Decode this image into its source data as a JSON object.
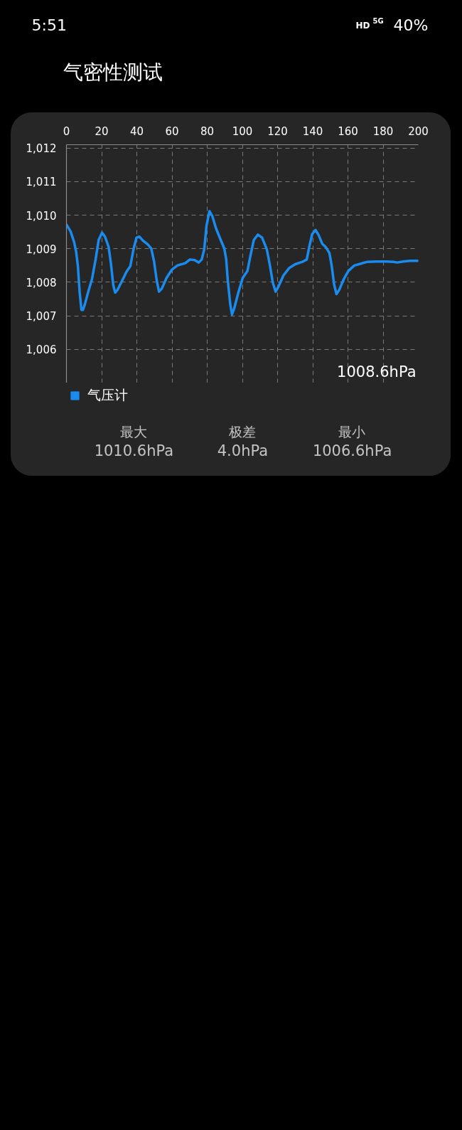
{
  "chart_data": {
    "type": "line",
    "title": "气密性测试",
    "annotations": [
      "5:51",
      "HD",
      "5G",
      "40%",
      "1008.6hPa",
      "最大",
      "1010.6hPa",
      "极差",
      "4.0hPa",
      "最小",
      "1006.6hPa"
    ],
    "xlim": [
      0,
      200
    ],
    "xticks": [
      0,
      20,
      40,
      60,
      80,
      100,
      120,
      140,
      160,
      180,
      200
    ],
    "ylim": [
      1005,
      1012.1
    ],
    "yticks": [
      {
        "value": 1006,
        "label": "1,006"
      },
      {
        "value": 1007,
        "label": "1,007"
      },
      {
        "value": 1008,
        "label": "1,008"
      },
      {
        "value": 1009,
        "label": "1,009"
      },
      {
        "value": 1010,
        "label": "1,010"
      },
      {
        "value": 1011,
        "label": "1,011"
      },
      {
        "value": 1012,
        "label": "1,012"
      }
    ],
    "grid": true,
    "legend": "bottom left",
    "series": [
      {
        "name": "气压计",
        "color": "#1a8cf0",
        "x": [
          0,
          2.4,
          4.4,
          5.5,
          6.5,
          7.5,
          8.5,
          9.4,
          10.5,
          12.5,
          14.5,
          16.6,
          18.3,
          20.2,
          21.9,
          24.0,
          25.3,
          26.6,
          27.7,
          29.1,
          31.4,
          34.1,
          36.3,
          38.1,
          39.8,
          41.5,
          43.5,
          46.2,
          48.2,
          49.8,
          51.3,
          52.6,
          54.2,
          56.9,
          60.0,
          63.0,
          67.5,
          70.2,
          72.9,
          75.2,
          76.9,
          78.3,
          79.6,
          81.3,
          83.0,
          85.0,
          87.7,
          89.7,
          90.8,
          91.7,
          93.1,
          94.1,
          95.3,
          97.8,
          100.2,
          102.9,
          104.5,
          106.5,
          108.8,
          111.2,
          113.9,
          115.5,
          117.3,
          118.9,
          120.6,
          123.3,
          126.7,
          130.1,
          134.1,
          136.6,
          138.0,
          139.7,
          141.6,
          143.4,
          145.4,
          147.4,
          149.5,
          150.8,
          152.2,
          153.5,
          155.1,
          157.6,
          160.3,
          163.6,
          167.0,
          171.1,
          176.5,
          181.9,
          185.9,
          188.0,
          191.4,
          195.4,
          200
        ],
        "values": [
          1009.72,
          1009.51,
          1009.19,
          1008.91,
          1008.48,
          1007.71,
          1007.18,
          1007.18,
          1007.35,
          1007.74,
          1008.09,
          1008.69,
          1009.26,
          1009.48,
          1009.36,
          1009.05,
          1008.55,
          1007.92,
          1007.69,
          1007.78,
          1008.02,
          1008.31,
          1008.48,
          1008.98,
          1009.33,
          1009.36,
          1009.24,
          1009.13,
          1009.01,
          1008.62,
          1008.06,
          1007.72,
          1007.81,
          1008.13,
          1008.38,
          1008.5,
          1008.57,
          1008.68,
          1008.66,
          1008.59,
          1008.68,
          1008.98,
          1009.68,
          1010.12,
          1009.96,
          1009.61,
          1009.26,
          1009.01,
          1008.69,
          1008.06,
          1007.35,
          1007.04,
          1007.21,
          1007.71,
          1008.13,
          1008.34,
          1008.77,
          1009.26,
          1009.42,
          1009.33,
          1008.98,
          1008.55,
          1007.99,
          1007.72,
          1007.88,
          1008.2,
          1008.43,
          1008.54,
          1008.61,
          1008.68,
          1009.05,
          1009.44,
          1009.56,
          1009.4,
          1009.15,
          1009.05,
          1008.87,
          1008.48,
          1007.92,
          1007.65,
          1007.78,
          1008.09,
          1008.34,
          1008.5,
          1008.55,
          1008.61,
          1008.62,
          1008.62,
          1008.61,
          1008.59,
          1008.62,
          1008.64,
          1008.64
        ]
      }
    ]
  }
}
